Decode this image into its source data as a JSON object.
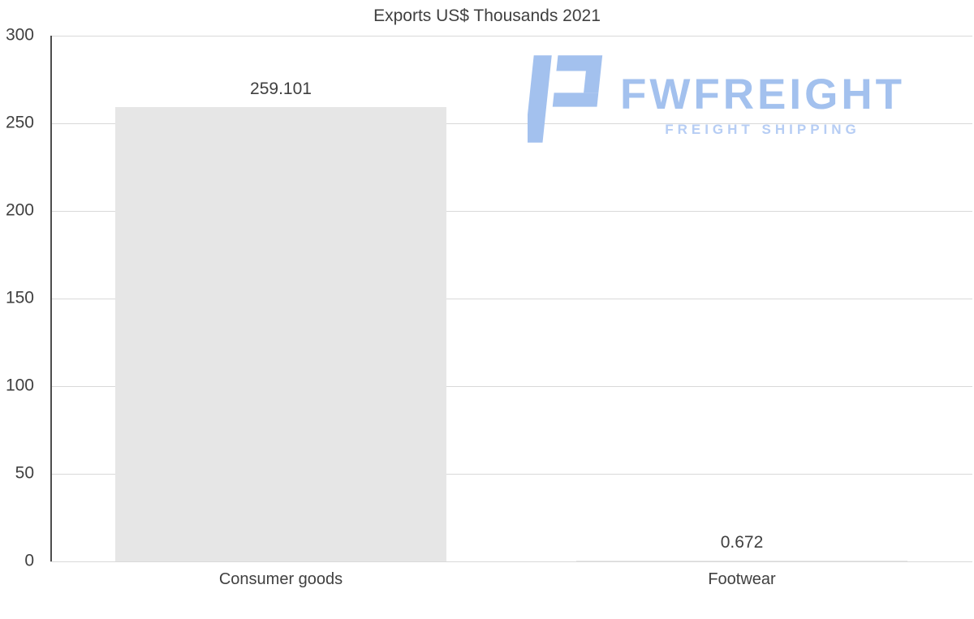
{
  "chart_data": {
    "type": "bar",
    "title": "Exports US$ Thousands 2021",
    "categories": [
      "Consumer goods",
      "Footwear"
    ],
    "values": [
      259.101,
      0.672
    ],
    "value_labels": [
      "259.101",
      "0.672"
    ],
    "xlabel": "",
    "ylabel": "",
    "ylim": [
      0,
      300
    ],
    "yticks": [
      0,
      50,
      100,
      150,
      200,
      250,
      300
    ],
    "grid": true,
    "legend": "none",
    "bar_color": "#e6e6e6",
    "grid_color": "#d9d9d9",
    "axis_color": "#4d4d4d",
    "text_color": "#404040"
  },
  "logo": {
    "brand": "FWFREIGHT",
    "tagline": "FREIGHT SHIPPING",
    "color": "#a3c1ee",
    "tagline_color": "#b6cdf4",
    "icon": "f-logo-icon"
  }
}
